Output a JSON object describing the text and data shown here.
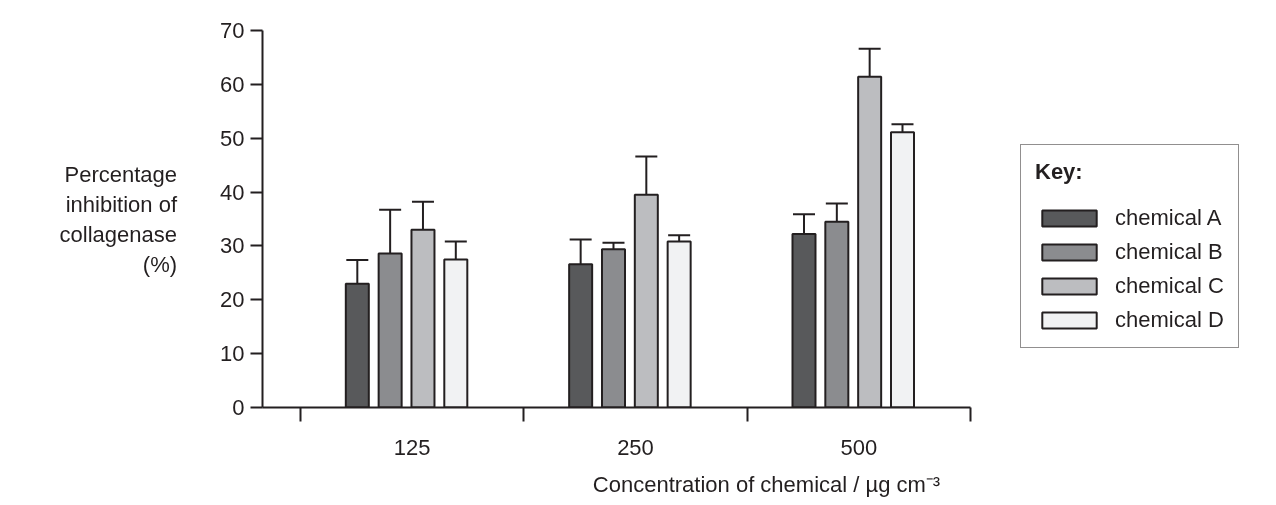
{
  "chart_data": {
    "type": "bar",
    "xlabel": "Concentration of chemical / µg cm⁻³",
    "ylabel": "Percentage inhibition of collagenase (%)",
    "legend_title": "Key:",
    "categories": [
      "125",
      "250",
      "500"
    ],
    "series": [
      {
        "name": "chemical A",
        "color": "#58595b",
        "values": [
          23.0,
          26.6,
          32.2
        ],
        "errors": [
          [
            23.0,
            27.4
          ],
          [
            26.6,
            31.2
          ],
          [
            32.2,
            35.9
          ]
        ]
      },
      {
        "name": "chemical B",
        "color": "#8b8c8f",
        "values": [
          28.6,
          29.4,
          34.5
        ],
        "errors": [
          [
            28.6,
            36.7
          ],
          [
            29.4,
            30.6
          ],
          [
            34.5,
            37.9
          ]
        ]
      },
      {
        "name": "chemical C",
        "color": "#bcbdc0",
        "values": [
          33.0,
          39.5,
          61.4
        ],
        "errors": [
          [
            33.0,
            38.2
          ],
          [
            39.5,
            46.6
          ],
          [
            61.4,
            66.6
          ]
        ]
      },
      {
        "name": "chemical D",
        "color": "#f1f2f3",
        "values": [
          27.5,
          30.8,
          51.1
        ],
        "errors": [
          [
            27.5,
            30.8
          ],
          [
            30.8,
            32.0
          ],
          [
            51.1,
            52.6
          ]
        ]
      }
    ],
    "ylim": [
      0,
      70
    ],
    "yticks": [
      0,
      10,
      20,
      30,
      40,
      50,
      60,
      70
    ],
    "legend": "right",
    "grid": false
  }
}
